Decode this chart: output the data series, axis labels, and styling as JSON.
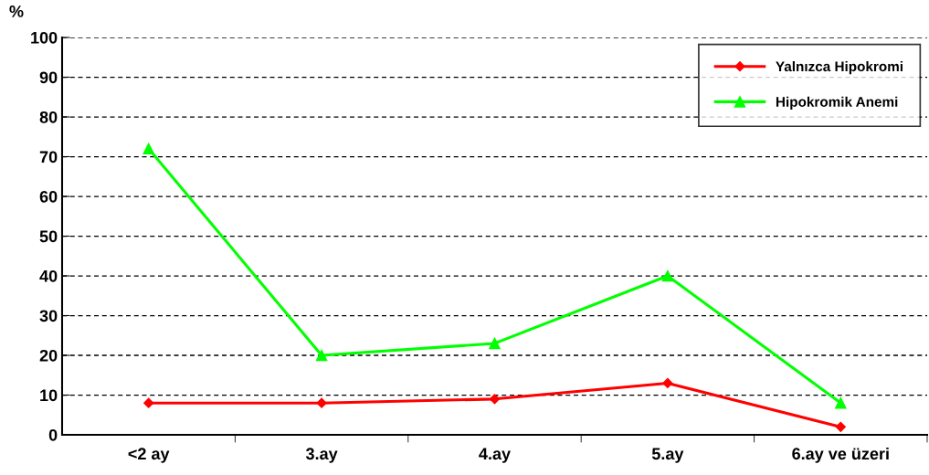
{
  "chart_data": {
    "type": "line",
    "ylabel": "%",
    "categories": [
      "<2 ay",
      "3.ay",
      "4.ay",
      "5.ay",
      "6.ay ve üzeri"
    ],
    "series": [
      {
        "name": "Yalnızca Hipokromi",
        "color": "#ff0000",
        "marker": "diamond",
        "values": [
          8,
          8,
          9,
          13,
          2
        ]
      },
      {
        "name": "Hipokromik Anemi",
        "color": "#00ff00",
        "marker": "triangle",
        "values": [
          72,
          20,
          23,
          40,
          8
        ]
      }
    ],
    "ylim": [
      0,
      100
    ],
    "yticks": [
      0,
      10,
      20,
      30,
      40,
      50,
      60,
      70,
      80,
      90,
      100
    ],
    "grid": "y",
    "legend": "top right",
    "line_style": "solid"
  }
}
